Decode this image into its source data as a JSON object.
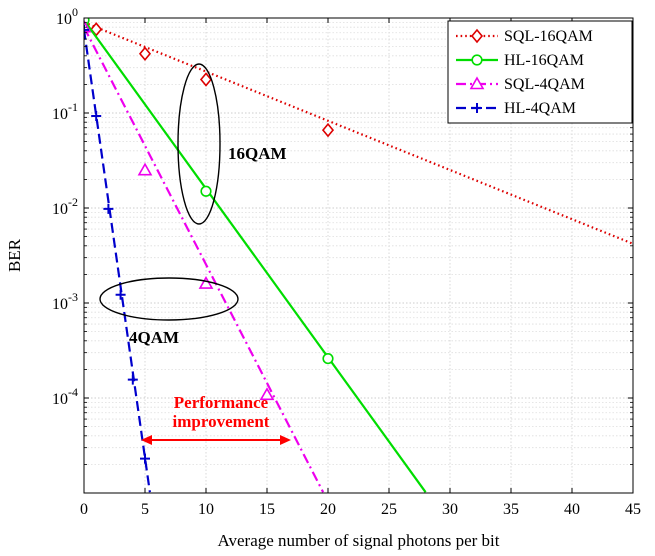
{
  "chart_data": {
    "type": "line",
    "title": "",
    "xlabel": "Average number of signal photons per bit",
    "ylabel": "BER",
    "xlim": [
      0,
      45
    ],
    "ylim_log10": [
      -5,
      0
    ],
    "y_scale": "log",
    "x_ticks": [
      0,
      5,
      10,
      15,
      20,
      25,
      30,
      35,
      40,
      45
    ],
    "y_ticks": [
      {
        "mantissa": "10",
        "exp": "0",
        "value": 1
      },
      {
        "mantissa": "10",
        "exp": "-1",
        "value": 0.1
      },
      {
        "mantissa": "10",
        "exp": "-2",
        "value": 0.01
      },
      {
        "mantissa": "10",
        "exp": "-3",
        "value": 0.001
      },
      {
        "mantissa": "10",
        "exp": "-4",
        "value": 0.0001
      }
    ],
    "grid": true,
    "legend_position": "top-right",
    "series": [
      {
        "name": "SQL-16QAM",
        "color": "#dd0000",
        "dash": "dotted",
        "marker": "diamond",
        "line": [
          [
            0,
            0.9
          ],
          [
            45,
            0.0042
          ]
        ],
        "markers": [
          [
            1,
            0.76
          ],
          [
            5,
            0.42
          ],
          [
            10,
            0.225
          ],
          [
            20,
            0.066
          ]
        ]
      },
      {
        "name": "HL-16QAM",
        "color": "#00dd00",
        "dash": "solid",
        "marker": "circle",
        "line": [
          [
            0,
            0.95
          ],
          [
            28,
            1.02e-05
          ]
        ],
        "markers": [
          [
            0,
            0.95
          ],
          [
            10,
            0.015
          ],
          [
            20,
            0.00026
          ]
        ]
      },
      {
        "name": "SQL-4QAM",
        "color": "#ee00ee",
        "dash": "dashdot",
        "marker": "triangle",
        "line": [
          [
            0,
            0.8
          ],
          [
            19.6,
            1.02e-05
          ]
        ],
        "markers": [
          [
            0,
            0.8
          ],
          [
            5,
            0.025
          ],
          [
            10,
            0.0016
          ],
          [
            15,
            0.000108
          ]
        ]
      },
      {
        "name": "HL-4QAM",
        "color": "#0000cc",
        "dash": "dashed",
        "marker": "plus",
        "line": [
          [
            0,
            0.75
          ],
          [
            5.4,
            1.02e-05
          ]
        ],
        "markers": [
          [
            0,
            0.75
          ],
          [
            1,
            0.093
          ],
          [
            2,
            0.0098
          ],
          [
            3,
            0.00122
          ],
          [
            4,
            0.000156
          ],
          [
            5,
            2.3e-05
          ]
        ]
      }
    ],
    "annotations": {
      "label_16qam": "16QAM",
      "label_4qam": "4QAM",
      "improvement_line1": "Performance",
      "improvement_line2": "improvement",
      "annotation_color": "#ff0000"
    }
  }
}
